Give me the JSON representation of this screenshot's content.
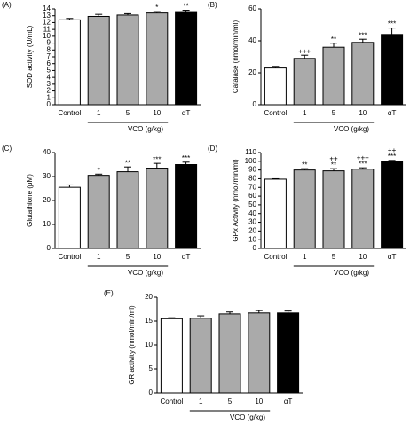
{
  "chart_data": [
    {
      "type": "bar",
      "panel_label": "(A)",
      "y_label": "SOD activity (U/mL)",
      "group_label": "VCO (g/kg)",
      "categories": [
        "Control",
        "1",
        "5",
        "10",
        "αT"
      ],
      "values": [
        12.4,
        12.9,
        13.1,
        13.4,
        13.6
      ],
      "errors": [
        0.2,
        0.3,
        0.2,
        0.2,
        0.2
      ],
      "annotations": [
        null,
        null,
        null,
        [
          "*"
        ],
        [
          "**"
        ]
      ],
      "colors": [
        "#ffffff",
        "#aaaaaa",
        "#aaaaaa",
        "#aaaaaa",
        "#000000"
      ],
      "ylim": [
        0,
        14
      ],
      "yticks": [
        0,
        1,
        2,
        3,
        4,
        5,
        6,
        7,
        8,
        9,
        10,
        11,
        12,
        13,
        14
      ]
    },
    {
      "type": "bar",
      "panel_label": "(B)",
      "y_label": "Catalase (nmol/min/ml)",
      "group_label": "VCO (g/kg)",
      "categories": [
        "Control",
        "1",
        "5",
        "10",
        "αT"
      ],
      "values": [
        23,
        29,
        36,
        39,
        44
      ],
      "errors": [
        1,
        2,
        2.5,
        2,
        4
      ],
      "annotations": [
        null,
        [
          "+++"
        ],
        [
          "**"
        ],
        [
          "***"
        ],
        [
          "***"
        ]
      ],
      "colors": [
        "#ffffff",
        "#aaaaaa",
        "#aaaaaa",
        "#aaaaaa",
        "#000000"
      ],
      "ylim": [
        0,
        60
      ],
      "yticks": [
        0,
        20,
        40,
        60
      ]
    },
    {
      "type": "bar",
      "panel_label": "(C)",
      "y_label": "Glutathione (μM)",
      "group_label": "VCO (g/kg)",
      "categories": [
        "Control",
        "1",
        "5",
        "10",
        "αT"
      ],
      "values": [
        25.5,
        30.5,
        32,
        33.5,
        35
      ],
      "errors": [
        1,
        0.5,
        2,
        2,
        1
      ],
      "annotations": [
        null,
        [
          "*"
        ],
        [
          "**"
        ],
        [
          "***"
        ],
        [
          "***"
        ]
      ],
      "colors": [
        "#ffffff",
        "#aaaaaa",
        "#aaaaaa",
        "#aaaaaa",
        "#000000"
      ],
      "ylim": [
        0,
        40
      ],
      "yticks": [
        0,
        10,
        20,
        30,
        40
      ]
    },
    {
      "type": "bar",
      "panel_label": "(D)",
      "y_label": "GPx Activity (nmol/min/ml)",
      "group_label": "VCO (g/kg)",
      "categories": [
        "Control",
        "1",
        "5",
        "10",
        "αT"
      ],
      "values": [
        79.5,
        90,
        89,
        91,
        100
      ],
      "errors": [
        0.5,
        1.5,
        2.5,
        1.5,
        1
      ],
      "annotations": [
        null,
        [
          "**"
        ],
        [
          "++",
          "**"
        ],
        [
          "+++",
          "***"
        ],
        [
          "++",
          "***"
        ]
      ],
      "colors": [
        "#ffffff",
        "#aaaaaa",
        "#aaaaaa",
        "#aaaaaa",
        "#000000"
      ],
      "ylim": [
        0,
        110
      ],
      "yticks": [
        0,
        10,
        20,
        30,
        40,
        50,
        60,
        70,
        80,
        90,
        100,
        110
      ]
    },
    {
      "type": "bar",
      "panel_label": "(E)",
      "y_label": "GR activity (nmol/min/ml)",
      "group_label": "VCO (g/kg)",
      "categories": [
        "Control",
        "1",
        "5",
        "10",
        "αT"
      ],
      "values": [
        15.5,
        15.6,
        16.5,
        16.7,
        16.7
      ],
      "errors": [
        0.2,
        0.5,
        0.4,
        0.5,
        0.4
      ],
      "annotations": [
        null,
        null,
        null,
        null,
        null
      ],
      "colors": [
        "#ffffff",
        "#aaaaaa",
        "#aaaaaa",
        "#aaaaaa",
        "#000000"
      ],
      "ylim": [
        0,
        20
      ],
      "yticks": [
        0,
        5,
        10,
        15,
        20
      ]
    }
  ]
}
